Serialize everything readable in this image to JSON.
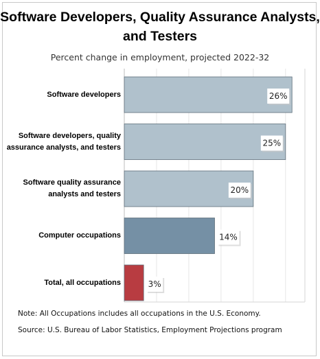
{
  "chart_data": {
    "type": "bar",
    "orientation": "horizontal",
    "title": "Software Developers, Quality Assurance Analysts, and Testers",
    "subtitle": "Percent change in employment, projected 2022-32",
    "categories": [
      "Software developers",
      "Software developers, quality assurance analysts, and testers",
      "Software quality assurance analysts and testers",
      "Computer occupations",
      "Total, all occupations"
    ],
    "values": [
      26,
      25,
      20,
      14,
      3
    ],
    "data_labels": [
      "26%",
      "25%",
      "20%",
      "14%",
      "3%"
    ],
    "bar_colors": [
      "#b0c1cc",
      "#b0c1cc",
      "#b0c1cc",
      "#7590a5",
      "#b83c41"
    ],
    "xlim": [
      0,
      28
    ],
    "grid": true,
    "legend": "none"
  },
  "notes": {
    "note": "Note: All Occupations includes all occupations in the U.S. Economy.",
    "source": "Source: U.S. Bureau of Labor Statistics, Employment Projections program"
  }
}
